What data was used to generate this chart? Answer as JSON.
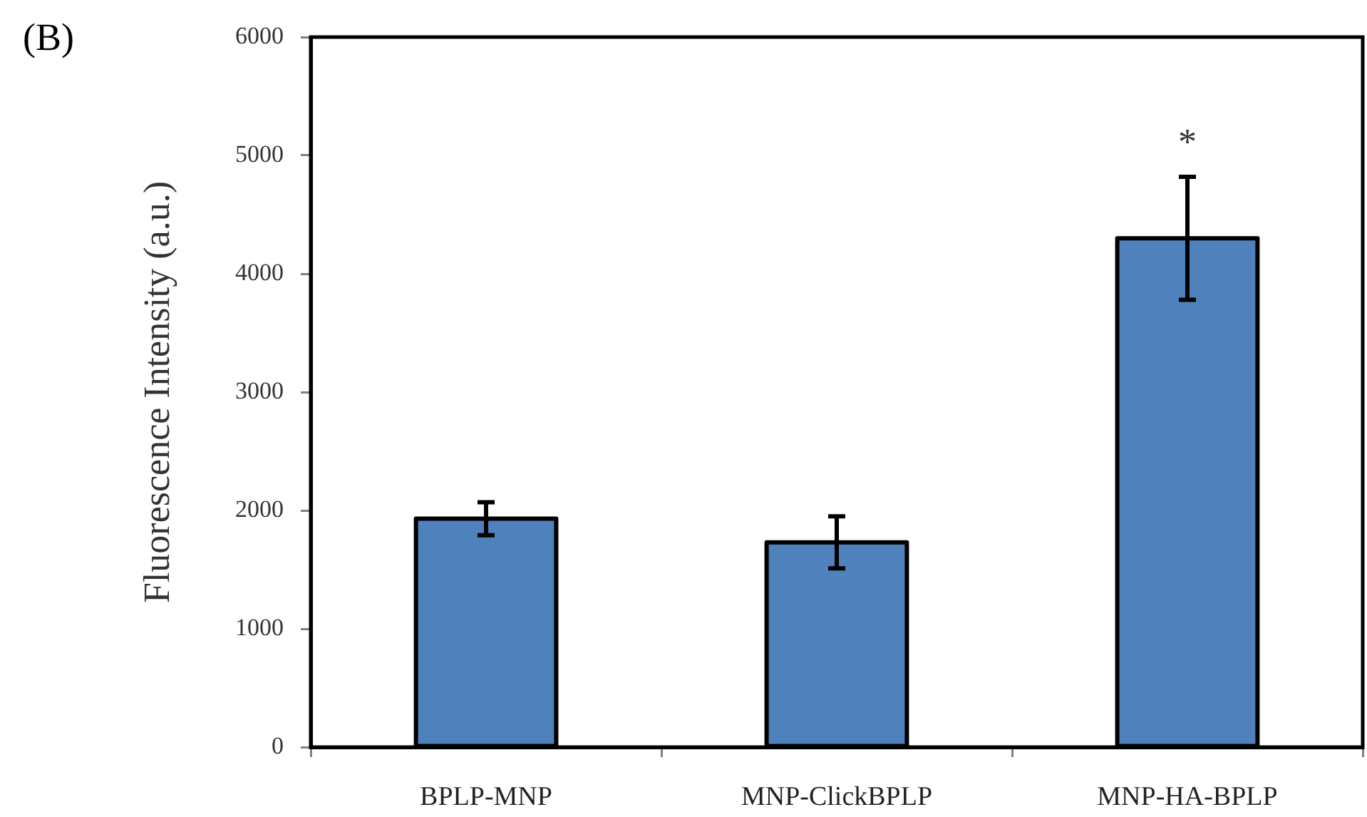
{
  "chart_data": {
    "type": "bar",
    "title": "(B)",
    "ylabel": "Fluorescence Intensity (a.u.)",
    "categories": [
      "BPLP-MNP",
      "MNP-ClickBPLP",
      "MNP-HA-BPLP"
    ],
    "values": [
      1930,
      1730,
      4300
    ],
    "errors": [
      140,
      220,
      520
    ],
    "color": "#4f81bd",
    "ylim": [
      0,
      6000
    ],
    "yticks": [
      0,
      1000,
      2000,
      3000,
      4000,
      5000,
      6000
    ],
    "annotations": [
      "*"
    ]
  }
}
